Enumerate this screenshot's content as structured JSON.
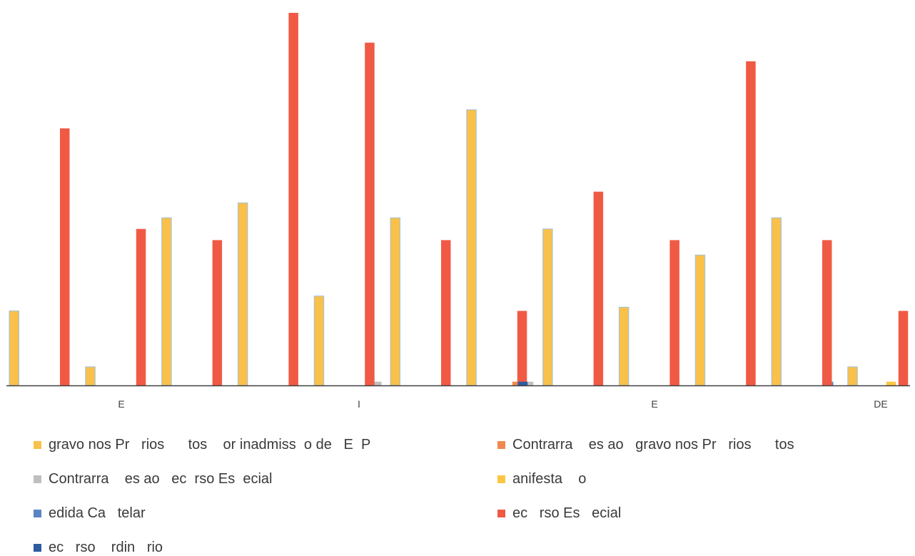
{
  "chart_data": {
    "type": "bar",
    "categories": [
      "",
      "E",
      "",
      "",
      "",
      "I",
      "",
      "",
      "",
      "E",
      "",
      "",
      "",
      "DE"
    ],
    "ylim": [
      0,
      100
    ],
    "grid": false,
    "legend_position": "bottom",
    "series": [
      {
        "name": "gravo nos Pr   rios      tos    or inadmiss  o de   E  P",
        "color": "#F9C04A",
        "values": [
          20,
          5,
          45,
          49,
          24,
          45,
          74,
          42,
          21,
          35,
          45,
          5,
          0,
          0
        ]
      },
      {
        "name": "Contrarra    es ao   gravo nos Pr   rios      tos",
        "color": "#EE8A4F",
        "values": [
          0,
          0,
          0,
          0,
          0,
          0,
          1,
          0,
          0,
          0,
          0,
          0,
          0,
          0
        ]
      },
      {
        "name": "Contrarra    es ao   ec  rso Es  ecial",
        "color": "#BFBFBF",
        "values": [
          0,
          0,
          0,
          0,
          0,
          1,
          1,
          0,
          0,
          0,
          0,
          0,
          0,
          0
        ]
      },
      {
        "name": "anifesta    o",
        "color": "#FBC643",
        "values": [
          0,
          0,
          0,
          0,
          0,
          0,
          0,
          0,
          0,
          0,
          0,
          1,
          0,
          0
        ]
      },
      {
        "name": "edida Ca   telar",
        "color": "#5B84C4",
        "values": [
          0,
          0,
          0,
          0,
          0,
          0,
          0,
          0,
          0,
          0,
          1,
          0,
          0,
          0
        ]
      },
      {
        "name": "ec   rso Es   ecial",
        "color": "#F05A45",
        "values": [
          69,
          42,
          39,
          100,
          92,
          39,
          20,
          52,
          39,
          87,
          39,
          20,
          0,
          0
        ]
      },
      {
        "name": "ec   rso    rdin   rio",
        "color": "#2E5C9E",
        "values": [
          0,
          0,
          0,
          0,
          0,
          0,
          1,
          0,
          0,
          0,
          0,
          0,
          0,
          0
        ]
      }
    ]
  }
}
